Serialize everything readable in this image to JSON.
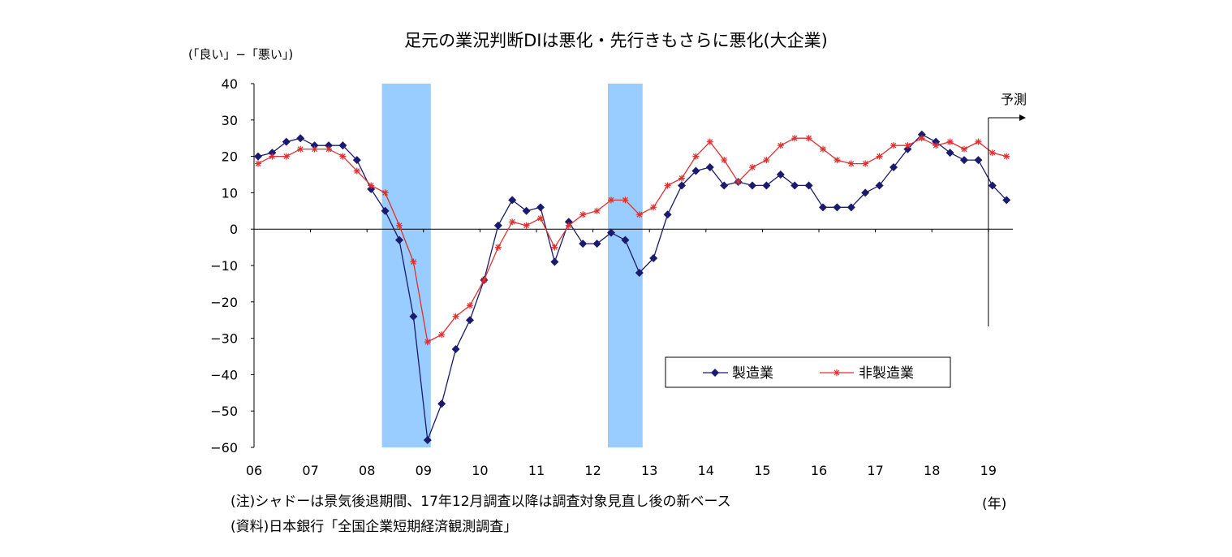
{
  "title": "足元の業況判断DIは悪化・先行きもさらに悪化(大企業)",
  "unit_label": "(「良い」−「悪い」)",
  "forecast_label": "予測",
  "year_unit": "(年)",
  "note": "(注)シャドーは景気後退期間、17年12月調査以降は調査対象見直し後の新ベース",
  "source": "(資料)日本銀行「全国企業短期経済観測調査」",
  "colors": {
    "manufacturing": "#1a1a6e",
    "non_manufacturing": "#e03030",
    "recession_shade": "#99ccff",
    "axis": "#000000"
  },
  "chart_data": {
    "type": "line",
    "title": "足元の業況判断DIは悪化・先行きもさらに悪化(大企業)",
    "ylabel": "(「良い」−「悪い」)",
    "xlabel": "(年)",
    "ylim": [
      -60,
      40
    ],
    "yticks": [
      "40",
      "30",
      "20",
      "10",
      "0",
      "−10",
      "−20",
      "−30",
      "−40",
      "−50",
      "−60"
    ],
    "xtick_labels": [
      "06",
      "07",
      "08",
      "09",
      "10",
      "11",
      "12",
      "13",
      "14",
      "15",
      "16",
      "17",
      "18",
      "19"
    ],
    "x_quarter_start": "2006Q1",
    "legend_position": "lower-right",
    "grid": false,
    "recession_periods": [
      [
        "2008Q2",
        "2009Q1"
      ],
      [
        "2012Q2",
        "2012Q4"
      ]
    ],
    "forecast_from": "2019Q3",
    "series": [
      {
        "name": "製造業",
        "marker": "diamond",
        "color": "#1a1a6e",
        "values": [
          20,
          21,
          24,
          25,
          23,
          23,
          23,
          19,
          11,
          5,
          -3,
          -24,
          -58,
          -48,
          -33,
          -25,
          -14,
          1,
          8,
          5,
          6,
          -9,
          2,
          -4,
          -4,
          -1,
          -3,
          -12,
          -8,
          4,
          12,
          16,
          17,
          12,
          13,
          12,
          12,
          15,
          12,
          12,
          6,
          6,
          6,
          10,
          12,
          17,
          22,
          26,
          24,
          21,
          19,
          19,
          12,
          8
        ]
      },
      {
        "name": "非製造業",
        "marker": "asterisk",
        "color": "#e03030",
        "values": [
          18,
          20,
          20,
          22,
          22,
          22,
          20,
          16,
          12,
          10,
          1,
          -9,
          -31,
          -29,
          -24,
          -21,
          -14,
          -5,
          2,
          1,
          3,
          -5,
          1,
          4,
          5,
          8,
          8,
          4,
          6,
          12,
          14,
          20,
          24,
          19,
          13,
          17,
          19,
          23,
          25,
          25,
          22,
          19,
          18,
          18,
          20,
          23,
          23,
          25,
          23,
          24,
          22,
          24,
          21,
          20
        ]
      }
    ]
  }
}
